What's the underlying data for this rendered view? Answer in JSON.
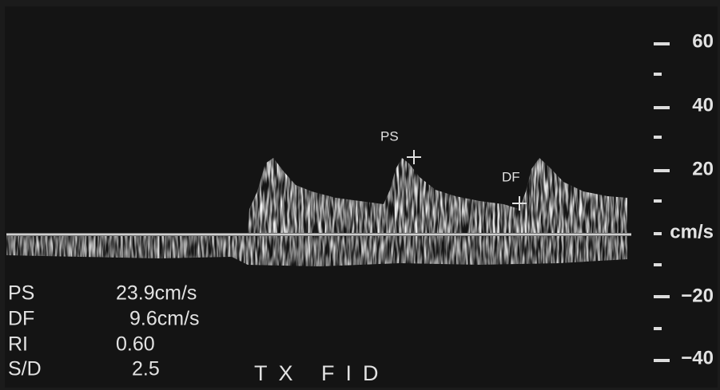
{
  "scale": {
    "labels": [
      "60",
      "40",
      "20",
      "cm/s",
      "−20",
      "−40"
    ]
  },
  "measurements": [
    {
      "label": "PS",
      "value": "23.9cm/s"
    },
    {
      "label": "DF",
      "value": "9.6cm/s"
    },
    {
      "label": "RI",
      "value": "0.60"
    },
    {
      "label": "S/D",
      "value": "2.5"
    }
  ],
  "markers": [
    "PS",
    "DF"
  ],
  "footer": "TX FID"
}
